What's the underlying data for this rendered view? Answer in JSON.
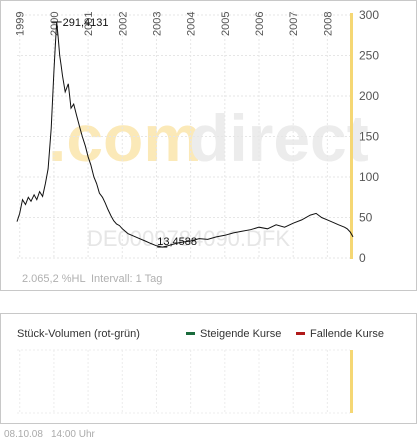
{
  "chart_data": [
    {
      "type": "line",
      "title": "",
      "watermark": ".comdirect",
      "instrument_id": "DE0009784090.DFK",
      "years": [
        "1999",
        "2000",
        "2001",
        "2002",
        "2003",
        "2004",
        "2005",
        "2006",
        "2007",
        "2008"
      ],
      "y_ticks": [
        0,
        50,
        100,
        150,
        200,
        250,
        300
      ],
      "ylim": [
        0,
        300
      ],
      "xlim": [
        1998.92,
        2008.75
      ],
      "grid": true,
      "max_label": "291,4131",
      "min_label": "13,4588",
      "performance": "2.065,2 %HL",
      "interval": "Intervall: 1 Tag",
      "accent_color": "#f5d774",
      "line_color": "#111111",
      "series": [
        {
          "x": [
            1998.92,
            1999.0,
            1999.08,
            1999.17,
            1999.25,
            1999.33,
            1999.42,
            1999.5,
            1999.58,
            1999.67,
            1999.75,
            1999.83,
            1999.92,
            2000.0,
            2000.04,
            2000.08,
            2000.12,
            2000.17,
            2000.21,
            2000.25,
            2000.33,
            2000.42,
            2000.5,
            2000.58,
            2000.67,
            2000.75,
            2000.83,
            2000.92,
            2001.0,
            2001.08,
            2001.17,
            2001.25,
            2001.33,
            2001.42,
            2001.5,
            2001.58,
            2001.67,
            2001.75,
            2001.83,
            2001.92,
            2002.0,
            2002.17,
            2002.33,
            2002.5,
            2002.67,
            2002.83,
            2003.0,
            2003.17,
            2003.33,
            2003.5,
            2003.67,
            2003.83,
            2004.0,
            2004.25,
            2004.5,
            2004.75,
            2005.0,
            2005.25,
            2005.5,
            2005.75,
            2006.0,
            2006.25,
            2006.5,
            2006.75,
            2007.0,
            2007.25,
            2007.5,
            2007.67,
            2007.83,
            2008.0,
            2008.17,
            2008.33,
            2008.5,
            2008.58,
            2008.67,
            2008.75
          ],
          "values": [
            45,
            55,
            72,
            66,
            75,
            70,
            78,
            72,
            82,
            76,
            92,
            110,
            160,
            230,
            262,
            291.4,
            275,
            250,
            238,
            225,
            205,
            215,
            185,
            190,
            175,
            162,
            150,
            138,
            125,
            115,
            100,
            92,
            80,
            75,
            68,
            60,
            52,
            46,
            42,
            40,
            36,
            30,
            27,
            24,
            21,
            18,
            15,
            13.5,
            15,
            17,
            19,
            20,
            21,
            24,
            23,
            26,
            28,
            31,
            33,
            35,
            38,
            36,
            41,
            38,
            43,
            47,
            53,
            55,
            50,
            47,
            44,
            41,
            38,
            36,
            32,
            26
          ]
        }
      ]
    },
    {
      "type": "bar",
      "title": "Stück-Volumen (rot-grün)",
      "legend": [
        {
          "name": "Steigende Kurse",
          "color": "#1a6b3c"
        },
        {
          "name": "Fallende Kurse",
          "color": "#b01a1a"
        }
      ],
      "values": []
    }
  ],
  "footer": {
    "date": "08.10.08",
    "time": "14:00 Uhr"
  }
}
